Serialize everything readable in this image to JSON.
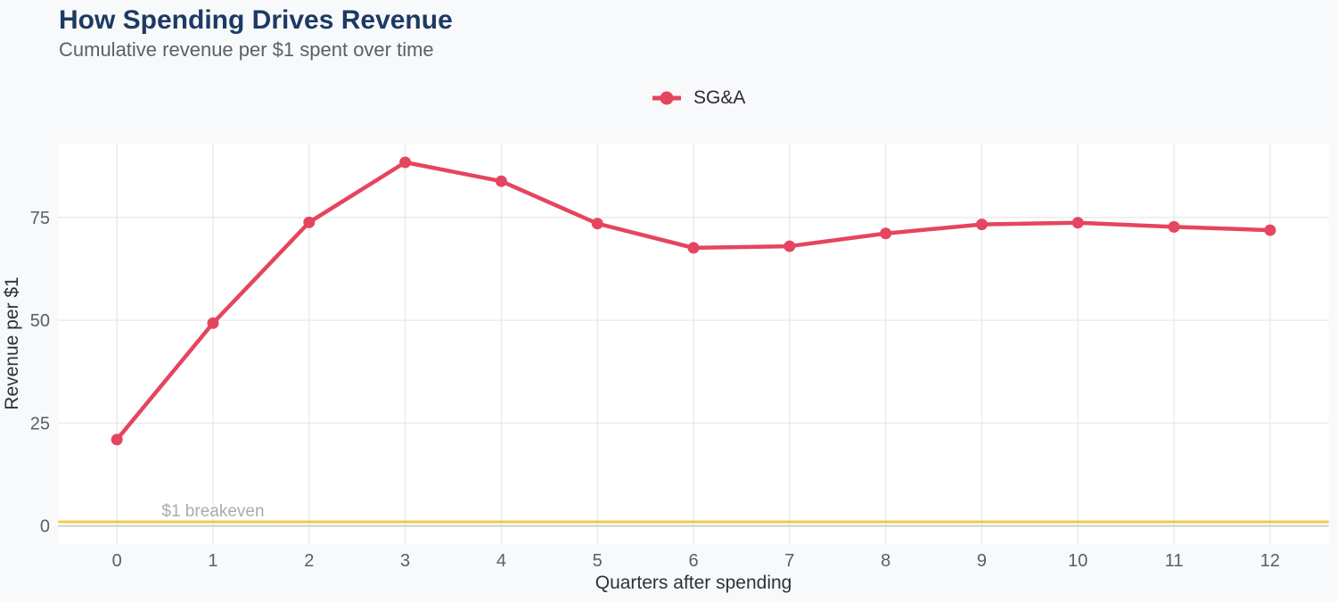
{
  "chart_data": {
    "type": "line",
    "title": "How Spending Drives Revenue",
    "subtitle": "Cumulative revenue per $1 spent over time",
    "xlabel": "Quarters after spending",
    "ylabel": "Revenue per $1",
    "x": [
      0,
      1,
      2,
      3,
      4,
      5,
      6,
      7,
      8,
      9,
      10,
      11,
      12
    ],
    "series": [
      {
        "name": "SG&A",
        "color": "#e5455f",
        "values": [
          21.0,
          49.3,
          73.8,
          88.4,
          83.8,
          73.5,
          67.6,
          68.0,
          71.1,
          73.3,
          73.7,
          72.7,
          71.9
        ]
      }
    ],
    "xticks": [
      0,
      1,
      2,
      3,
      4,
      5,
      6,
      7,
      8,
      9,
      10,
      11,
      12
    ],
    "yticks": [
      0,
      25,
      50,
      75
    ],
    "xlim": [
      -0.61,
      12.61
    ],
    "ylim": [
      -4.4,
      92.95
    ],
    "grid": true,
    "legend_position": "top-center",
    "reference_line": {
      "value": 1,
      "label": "$1 breakeven",
      "label_x": 1,
      "color": "#f2c94c",
      "label_color": "#a8acb0"
    }
  },
  "colors": {
    "page_bg": "#f8f9fa",
    "plot_bg": "#ffffff",
    "grid": "#e8e9eb",
    "zero_line": "#cdd0d3",
    "title": "#1c3a63",
    "subtitle": "#5c6066",
    "tick": "#595f63",
    "axis_title": "#2e3236",
    "legend_text": "#2a2a33"
  }
}
